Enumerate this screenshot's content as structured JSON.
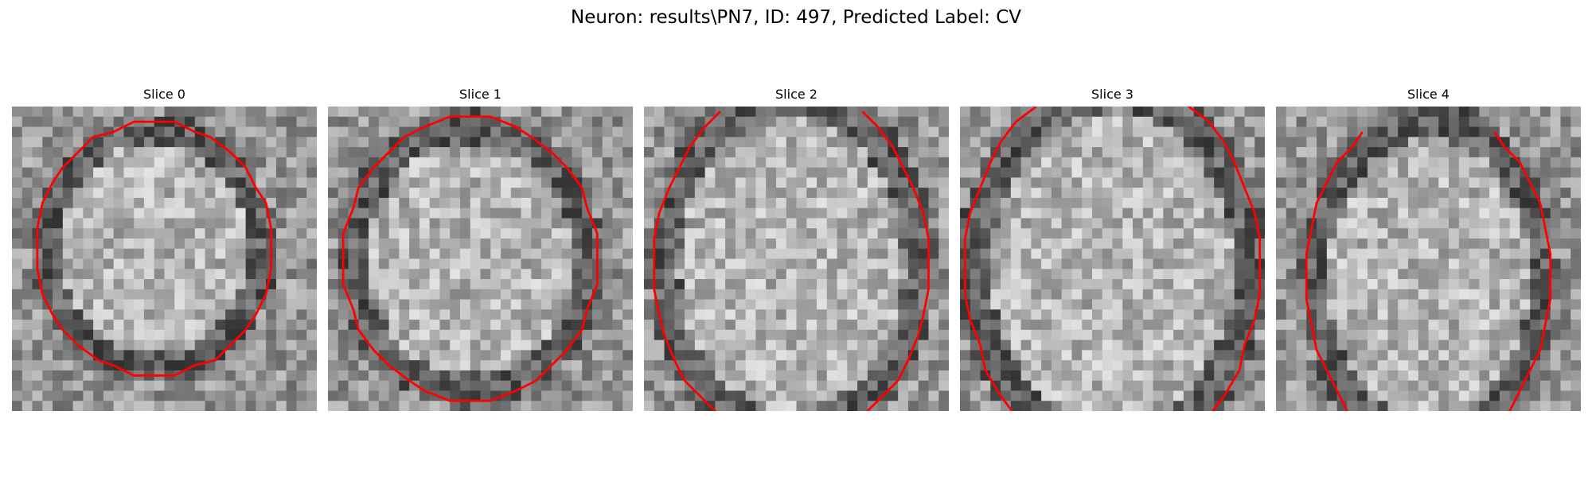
{
  "figure": {
    "title": "Neuron: results\\PN7, ID: 497, Predicted Label: CV",
    "contour_color": "#ff0000",
    "colormap": "gray"
  },
  "panels": [
    {
      "title": "Slice 0",
      "image_icon": "grayscale-em-slice"
    },
    {
      "title": "Slice 1",
      "image_icon": "grayscale-em-slice"
    },
    {
      "title": "Slice 2",
      "image_icon": "grayscale-em-slice"
    },
    {
      "title": "Slice 3",
      "image_icon": "grayscale-em-slice"
    },
    {
      "title": "Slice 4",
      "image_icon": "grayscale-em-slice"
    }
  ]
}
